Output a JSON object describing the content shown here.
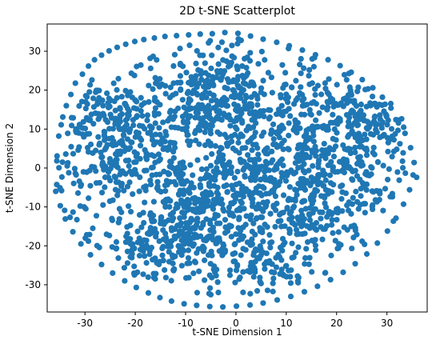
{
  "chart_data": {
    "type": "scatter",
    "title": "2D t-SNE Scatterplot",
    "xlabel": "t-SNE Dimension 1",
    "ylabel": "t-SNE Dimension 2",
    "xlim": [
      -37.5,
      38
    ],
    "ylim": [
      -37,
      37
    ],
    "xticks": [
      -30,
      -20,
      -10,
      0,
      10,
      20,
      30
    ],
    "yticks": [
      -30,
      -20,
      -10,
      0,
      10,
      20,
      30
    ],
    "grid": false,
    "legend": "none",
    "marker_color": "#1f77b4",
    "points_count": 2200,
    "series": [
      {
        "x": [
          -35.2,
          -34.4,
          -33.7,
          -32.8,
          -31.9,
          -30.5,
          -29.3,
          -28.1,
          -26.7,
          -25.2,
          -23.6,
          -21.9,
          -20.1,
          -18.3,
          -16.2,
          -14.1,
          -11.8,
          -9.4,
          -7.1,
          -4.7,
          -2.2,
          0.4,
          2.9,
          5.4,
          8.1,
          10.6,
          13.2,
          15.8,
          18.3,
          20.7,
          22.9,
          25.1,
          27.2,
          29.1,
          30.8,
          32.3,
          33.6,
          34.7,
          35.4,
          35.9,
          -35.8,
          -34.9,
          -33.9,
          -32.4,
          -30.8,
          -28.9,
          -26.7,
          -24.5,
          -22.1,
          -19.8,
          -17.4,
          -15.1,
          -12.8,
          -10.3,
          -7.8,
          -5.2,
          -2.6,
          0.1,
          2.8,
          5.4,
          8.2,
          10.9,
          13.6,
          16.2,
          18.8,
          21.3,
          23.7,
          26.0,
          28.1,
          30.1,
          31.8,
          33.3,
          34.5,
          35.2
        ],
        "y": [
          8.2,
          13.1,
          16.0,
          18.9,
          21.8,
          24.1,
          26.2,
          27.8,
          29.0,
          30.1,
          31.0,
          31.8,
          32.5,
          33.0,
          33.4,
          33.8,
          34.0,
          34.2,
          34.4,
          34.5,
          34.8,
          34.6,
          33.9,
          33.1,
          32.3,
          31.4,
          30.3,
          29.1,
          27.8,
          26.3,
          24.6,
          22.7,
          20.6,
          18.2,
          15.4,
          12.3,
          8.9,
          5.2,
          1.4,
          -2.4,
          -6.0,
          -9.7,
          -13.1,
          -16.4,
          -19.5,
          -22.3,
          -24.8,
          -27.0,
          -29.0,
          -30.7,
          -32.1,
          -33.3,
          -34.2,
          -34.9,
          -35.3,
          -35.6,
          -35.7,
          -35.5,
          -35.2,
          -34.7,
          -33.9,
          -33.0,
          -31.8,
          -30.4,
          -28.7,
          -26.8,
          -24.6,
          -22.1,
          -19.3,
          -16.2,
          -12.9,
          -9.3,
          -5.6,
          -1.8
        ]
      }
    ]
  }
}
